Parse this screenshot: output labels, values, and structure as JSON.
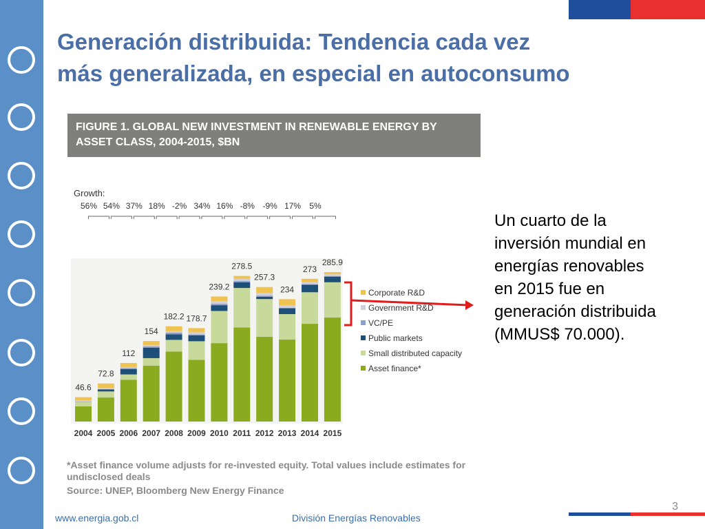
{
  "slide": {
    "title_line1": "Generación distribuida: Tendencia cada vez",
    "title_line2": "más generalizada, en especial en autoconsumo",
    "body": "Un cuarto de la inversión mundial en energías renovables en 2015 fue en generación distribuida (MMUS$ 70.000).",
    "footer_url": "www.energia.gob.cl",
    "footer_division": "División Energías Renovables",
    "page_number": "3"
  },
  "chart_data": {
    "type": "bar",
    "stacked": true,
    "title": "FIGURE 1. GLOBAL NEW INVESTMENT IN RENEWABLE ENERGY BY ASSET CLASS, 2004-2015, $BN",
    "growth_title": "Growth:",
    "growth_labels": [
      "56%",
      "54%",
      "37%",
      "18%",
      "-2%",
      "34%",
      "16%",
      "-8%",
      "-9%",
      "17%",
      "5%"
    ],
    "categories": [
      "2004",
      "2005",
      "2006",
      "2007",
      "2008",
      "2009",
      "2010",
      "2011",
      "2012",
      "2013",
      "2014",
      "2015"
    ],
    "totals": [
      46.6,
      72.8,
      112.0,
      154.0,
      182.2,
      178.7,
      239.2,
      278.5,
      257.3,
      234.0,
      273.0,
      285.9
    ],
    "ylim": [
      0,
      285.9
    ],
    "series": [
      {
        "name": "Asset finance*",
        "color": "#8aaa1f",
        "values": [
          29.0,
          46.0,
          80.0,
          107.0,
          134.0,
          118.0,
          150.0,
          180.0,
          162.0,
          157.0,
          187.0,
          199.0
        ]
      },
      {
        "name": "Small distributed capacity",
        "color": "#c8d99c",
        "values": [
          8.6,
          11.6,
          10.1,
          14.3,
          22.2,
          35.6,
          61.5,
          75.5,
          72.3,
          48.5,
          60.3,
          67.4
        ]
      },
      {
        "name": "Public markets",
        "color": "#1e4f79",
        "values": [
          0.3,
          3.8,
          10.4,
          20.0,
          10.6,
          11.4,
          11.0,
          10.9,
          4.2,
          11.3,
          14.5,
          10.9
        ]
      },
      {
        "name": "VC/PE",
        "color": "#8e9fc9",
        "values": [
          0.4,
          0.6,
          1.6,
          2.4,
          3.2,
          1.6,
          2.7,
          2.6,
          2.4,
          0.4,
          0.8,
          0.4
        ]
      },
      {
        "name": "Government R&D",
        "color": "#cfd0dc",
        "values": [
          2.0,
          2.5,
          2.2,
          2.7,
          2.8,
          4.1,
          5.4,
          4.3,
          5.1,
          5.0,
          4.1,
          4.0
        ]
      },
      {
        "name": "Corporate R&D",
        "color": "#f0c24f",
        "values": [
          6.3,
          8.3,
          7.7,
          7.6,
          9.4,
          8.0,
          8.6,
          5.2,
          11.3,
          11.8,
          6.3,
          4.2
        ]
      }
    ],
    "footnote": "*Asset finance volume adjusts for re-invested equity.  Total values include estimates for undisclosed deals",
    "source": "Source: UNEP, Bloomberg New Energy Finance"
  }
}
